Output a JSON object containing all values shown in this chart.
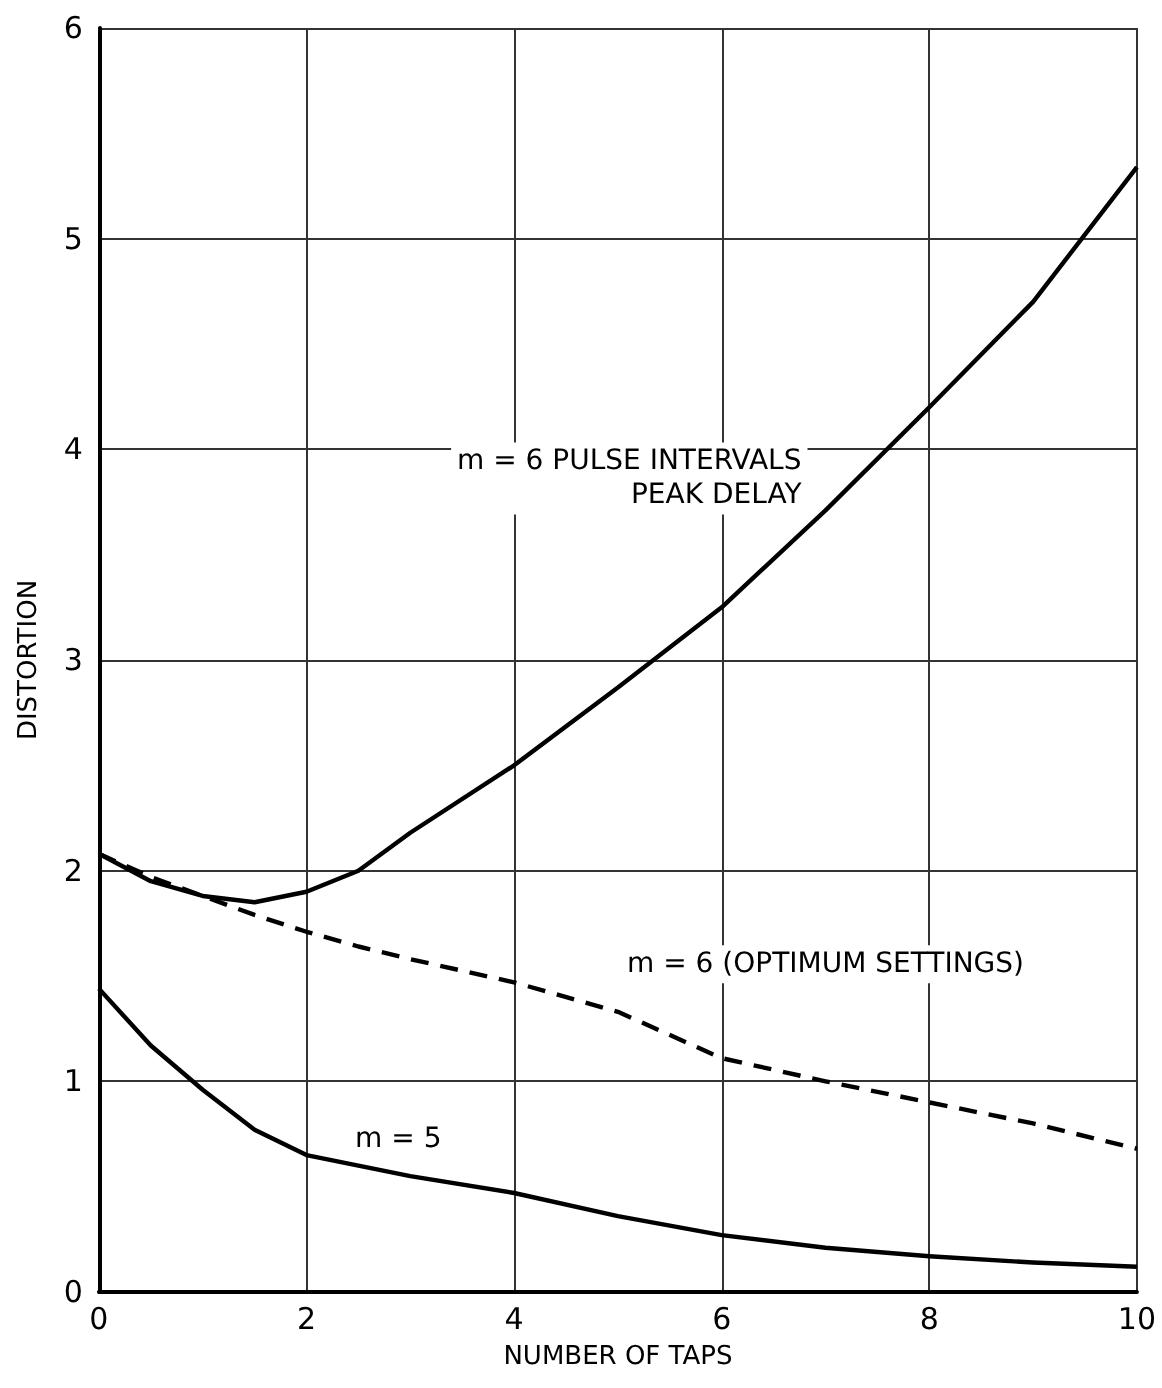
{
  "chart_data": {
    "type": "line",
    "xlabel": "NUMBER OF TAPS",
    "ylabel": "DISTORTION",
    "x": [
      0,
      0.5,
      1,
      1.5,
      2,
      2.5,
      3,
      4,
      5,
      6,
      7,
      8,
      9,
      10
    ],
    "series": [
      {
        "name": "m = 6 PULSE INTERVALS\nPEAK DELAY",
        "color": "#000000",
        "line_style": "solid",
        "values": [
          2.08,
          1.95,
          1.88,
          1.85,
          1.9,
          2.0,
          2.18,
          2.5,
          2.87,
          3.25,
          3.71,
          4.2,
          4.7,
          5.34
        ]
      },
      {
        "name": "m = 6 (OPTIMUM SETTINGS)",
        "color": "#000000",
        "line_style": "dashed",
        "values": [
          2.08,
          1.97,
          1.88,
          1.79,
          1.71,
          1.64,
          1.58,
          1.47,
          1.33,
          1.11,
          1.0,
          0.9,
          0.8,
          0.68
        ]
      },
      {
        "name": "m = 5",
        "color": "#000000",
        "line_style": "solid",
        "values": [
          1.44,
          1.17,
          0.96,
          0.77,
          0.65,
          0.6,
          0.55,
          0.47,
          0.36,
          0.27,
          0.21,
          0.17,
          0.14,
          0.12
        ]
      }
    ],
    "xlim": [
      0,
      10
    ],
    "xticks": [
      0,
      2,
      4,
      6,
      8,
      10
    ],
    "ylim": [
      0,
      6
    ],
    "yticks": [
      0,
      1,
      2,
      3,
      4,
      5,
      6
    ],
    "grid": true,
    "legend": false
  }
}
